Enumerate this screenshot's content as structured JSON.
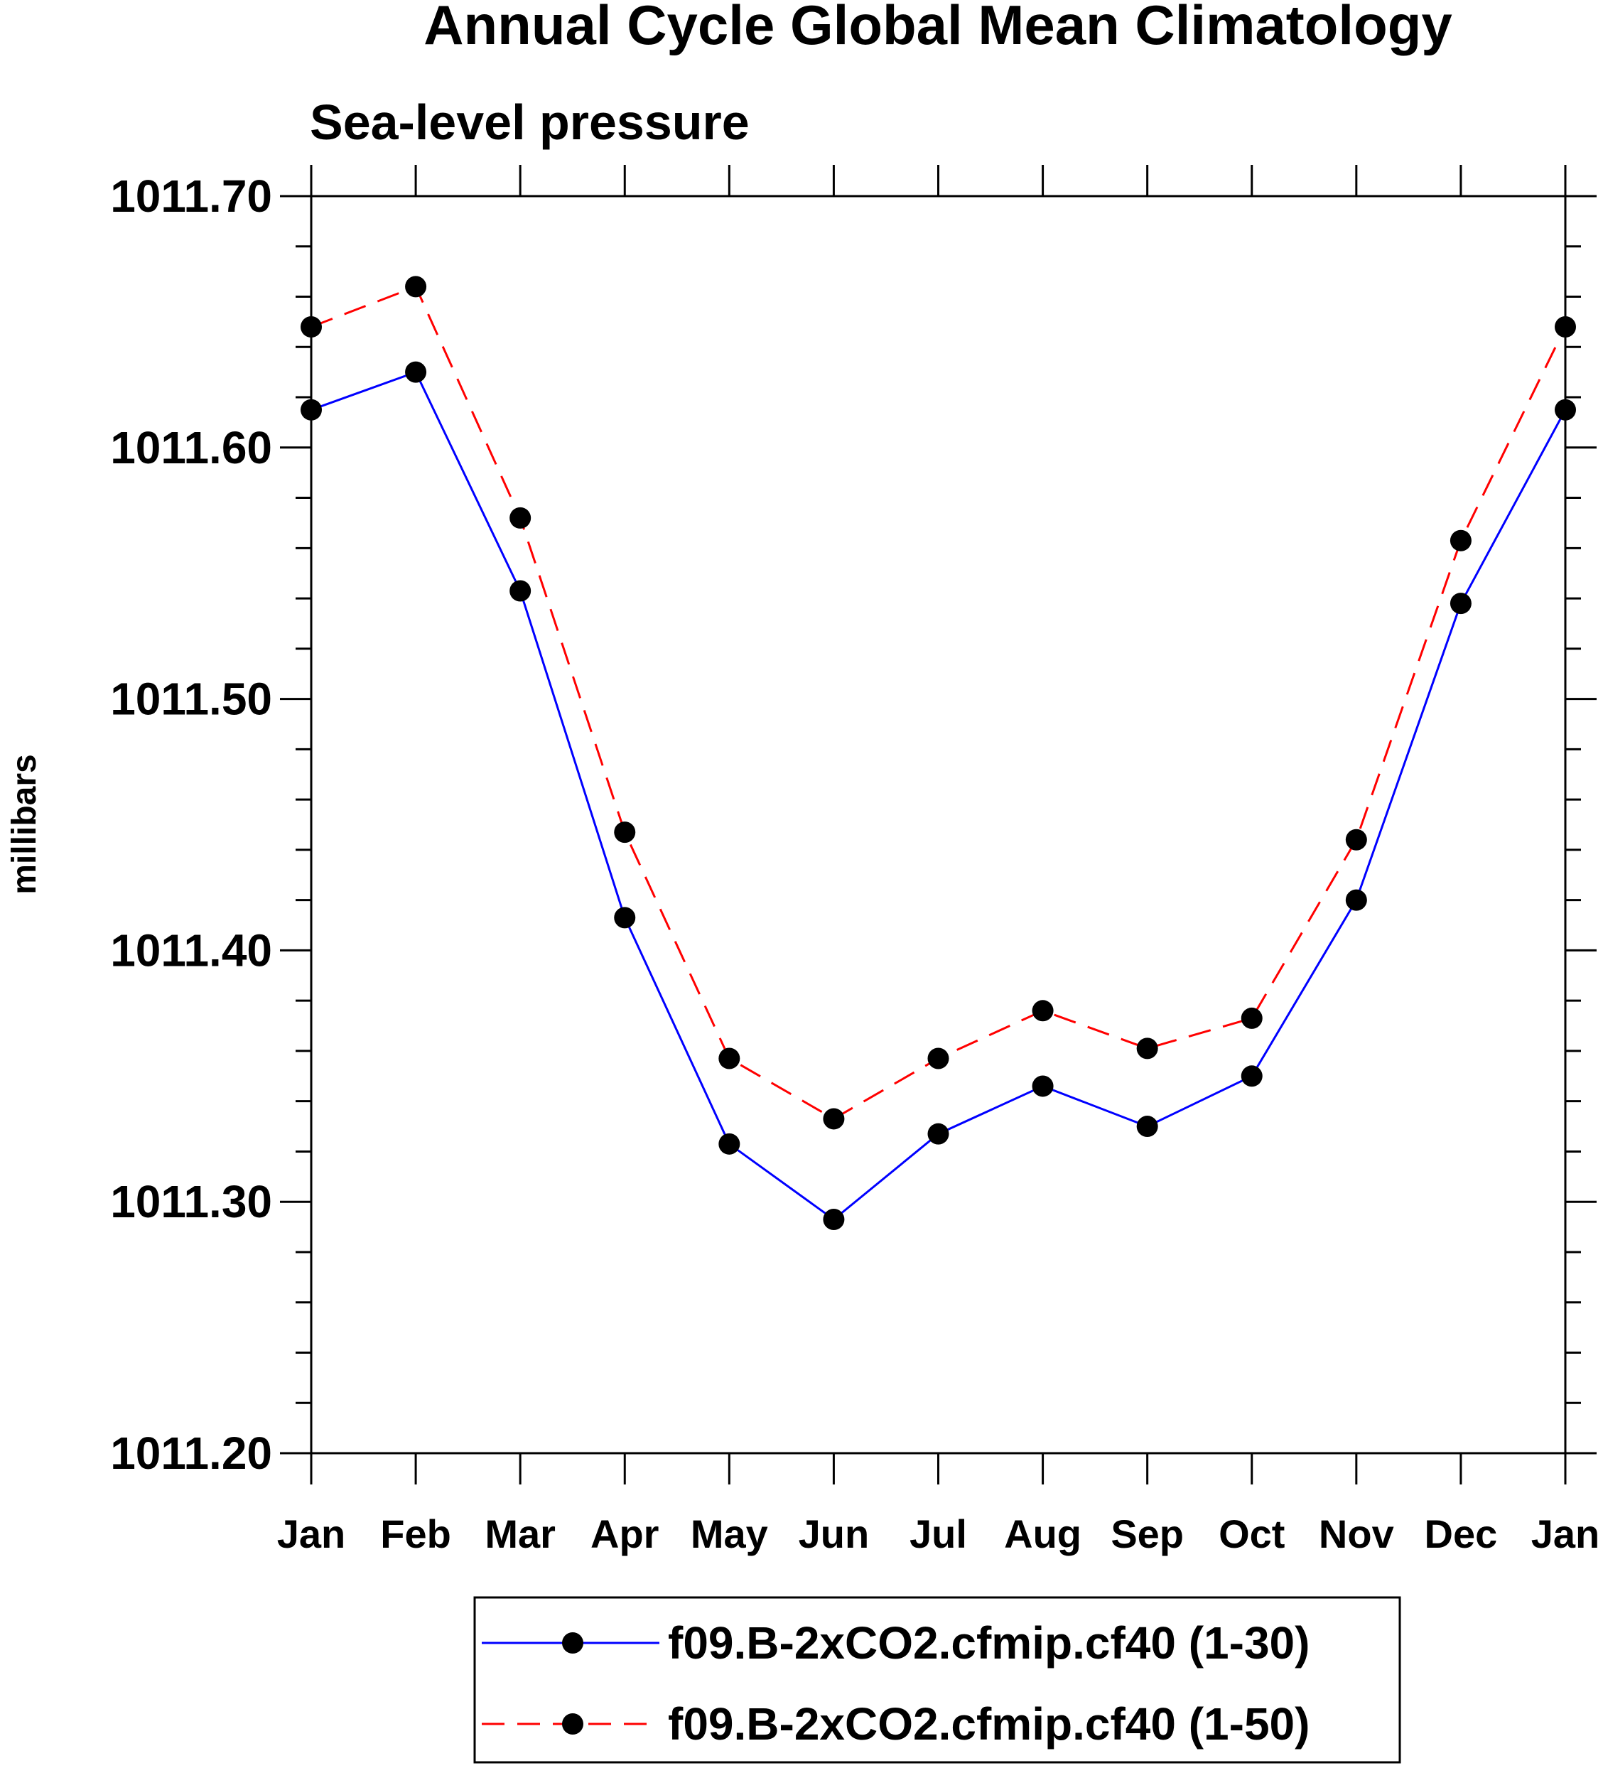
{
  "chart_data": {
    "type": "line",
    "title": "Annual Cycle Global Mean Climatology",
    "subtitle": "Sea-level pressure",
    "xlabel": "",
    "ylabel": "millibars",
    "categories": [
      "Jan",
      "Feb",
      "Mar",
      "Apr",
      "May",
      "Jun",
      "Jul",
      "Aug",
      "Sep",
      "Oct",
      "Nov",
      "Dec",
      "Jan"
    ],
    "ylim": [
      1011.2,
      1011.7
    ],
    "yticks": [
      "1011.20",
      "1011.30",
      "1011.40",
      "1011.50",
      "1011.60",
      "1011.70"
    ],
    "grid": false,
    "legend_position": "bottom-center",
    "series": [
      {
        "name": "f09.B-2xCO2.cfmip.cf40 (1-30)",
        "color": "#0000ff",
        "line_style": "solid",
        "marker": "filled-circle",
        "values": [
          1011.615,
          1011.63,
          1011.543,
          1011.413,
          1011.323,
          1011.293,
          1011.327,
          1011.346,
          1011.33,
          1011.35,
          1011.42,
          1011.538,
          1011.615
        ]
      },
      {
        "name": "f09.B-2xCO2.cfmip.cf40 (1-50)",
        "color": "#ff0000",
        "line_style": "dashed",
        "marker": "filled-circle",
        "values": [
          1011.648,
          1011.664,
          1011.572,
          1011.447,
          1011.357,
          1011.333,
          1011.357,
          1011.376,
          1011.361,
          1011.373,
          1011.444,
          1011.563,
          1011.648
        ]
      }
    ]
  }
}
